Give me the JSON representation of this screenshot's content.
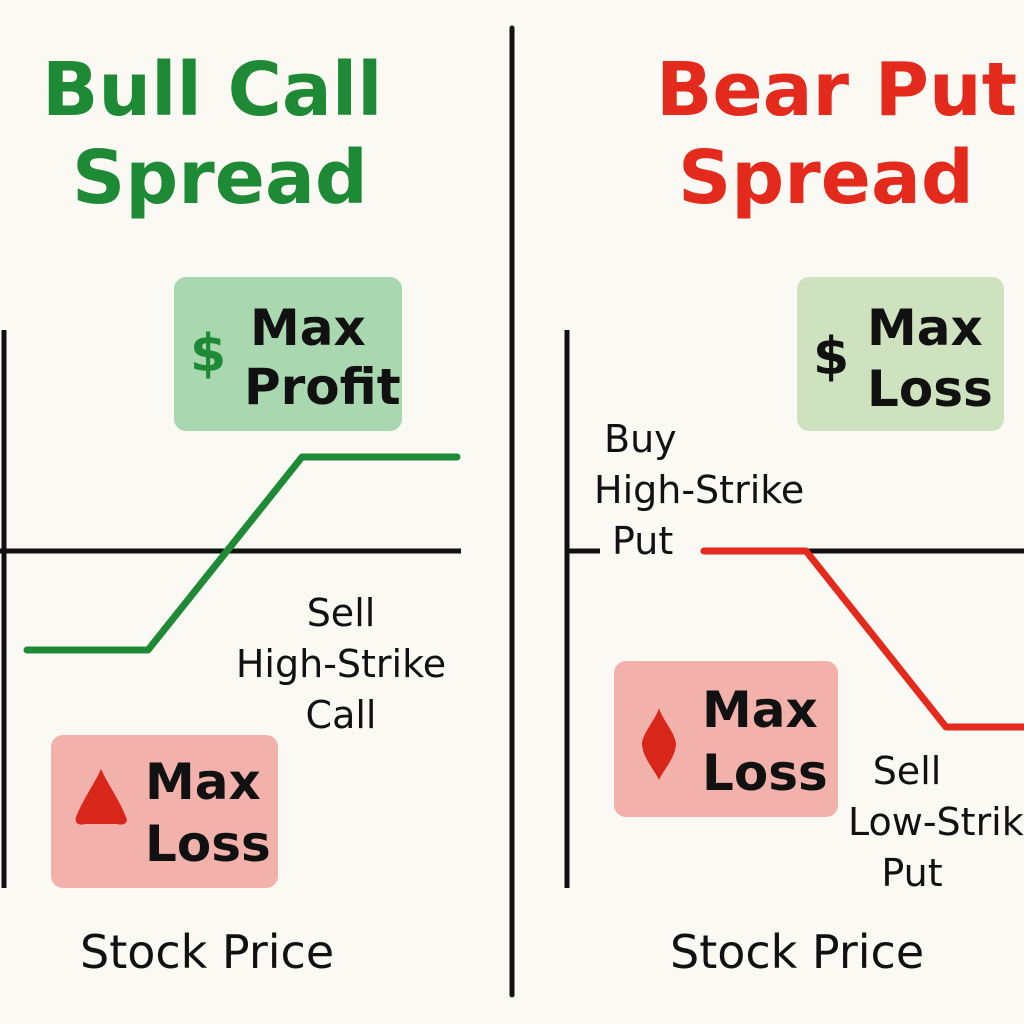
{
  "bull": {
    "title_line1": "Bull Call",
    "title_line2": "Spread",
    "max_profit_symbol": "$",
    "max_profit_line1": "Max",
    "max_profit_line2": "Profit",
    "max_loss_line1": "Max",
    "max_loss_line2": "Loss",
    "annotation_line1": "Sell",
    "annotation_line2": "High-Strike",
    "annotation_line3": "Call",
    "x_axis_label": "Stock Price",
    "payoff_color": "#1f8a36"
  },
  "bear": {
    "title_line1": "Bear Put",
    "title_line2": "Spread",
    "max_loss_top_symbol": "$",
    "max_loss_top_line1": "Max",
    "max_loss_top_line2": "Loss",
    "buy_line1": "Buy",
    "buy_line2": "High-Strike",
    "buy_line3": "Put",
    "max_loss_bottom_line1": "Max",
    "max_loss_bottom_line2": "Loss",
    "sell_line1": "Sell",
    "sell_line2": "Low-Strike",
    "sell_line3": "Put",
    "x_axis_label": "Stock Price",
    "payoff_color": "#e32a1c"
  },
  "colors": {
    "background": "#fbf9f3",
    "bull_green": "#1f8a36",
    "bear_red": "#e32a1c",
    "profit_badge": "#a9d8b0",
    "loss_badge": "#f2b2ab",
    "bear_top_badge": "#cfe2bf"
  },
  "icons": {
    "bull_max_profit": "dollar-icon",
    "bull_max_loss": "red-triangle-icon",
    "bear_max_loss_top": "dollar-icon",
    "bear_max_loss_bottom": "red-diamond-icon"
  }
}
